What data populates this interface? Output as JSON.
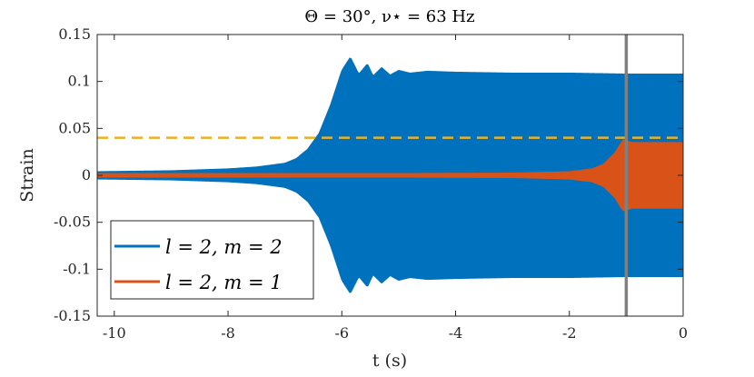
{
  "chart_data": {
    "type": "line",
    "title": "Θ = 30°,   ν⋆ = 63 Hz",
    "xlabel": "t (s)",
    "ylabel": "Strain",
    "xlim": [
      -10.3,
      0
    ],
    "ylim": [
      -0.15,
      0.15
    ],
    "xticks": [
      -10,
      -8,
      -6,
      -4,
      -2,
      0
    ],
    "xtick_labels": [
      "-10",
      "-8",
      "-6",
      "-4",
      "-2",
      "0"
    ],
    "yticks": [
      -0.15,
      -0.1,
      -0.05,
      0,
      0.05,
      0.1,
      0.15
    ],
    "ytick_labels": [
      "-0.15",
      "-0.1",
      "-0.05",
      "0",
      "0.05",
      "0.1",
      "0.15"
    ],
    "grid": false,
    "legend_position": "bottom-left",
    "series": [
      {
        "name": "l = 2, m = 2",
        "color": "#0072BD",
        "envelope_t": [
          -10.3,
          -9,
          -8,
          -7.5,
          -7,
          -6.8,
          -6.6,
          -6.4,
          -6.2,
          -6.0,
          -5.85,
          -5.7,
          -5.55,
          -5.45,
          -5.3,
          -5.15,
          -5.0,
          -4.8,
          -4.5,
          -4.0,
          -3.0,
          -2.0,
          -1.0,
          -0.6,
          0
        ],
        "envelope_amp": [
          0.004,
          0.005,
          0.007,
          0.009,
          0.013,
          0.018,
          0.028,
          0.045,
          0.075,
          0.112,
          0.126,
          0.108,
          0.119,
          0.106,
          0.115,
          0.107,
          0.112,
          0.109,
          0.111,
          0.11,
          0.109,
          0.109,
          0.108,
          0.108,
          0.108
        ]
      },
      {
        "name": "l = 2, m = 1",
        "color": "#D95319",
        "envelope_t": [
          -10.3,
          -5,
          -3,
          -2,
          -1.6,
          -1.4,
          -1.2,
          -1.1,
          -1.05,
          -1.0,
          -0.95,
          -0.9,
          -0.6,
          0
        ],
        "envelope_amp": [
          0.002,
          0.002,
          0.0025,
          0.004,
          0.007,
          0.012,
          0.024,
          0.034,
          0.038,
          0.037,
          0.036,
          0.035,
          0.035,
          0.035
        ]
      }
    ],
    "reference_lines": [
      {
        "orientation": "horizontal",
        "value": 0.04,
        "style": "dashed",
        "color": "#EDB120"
      },
      {
        "orientation": "vertical",
        "value": -1.0,
        "style": "solid",
        "color": "#808080"
      }
    ]
  }
}
